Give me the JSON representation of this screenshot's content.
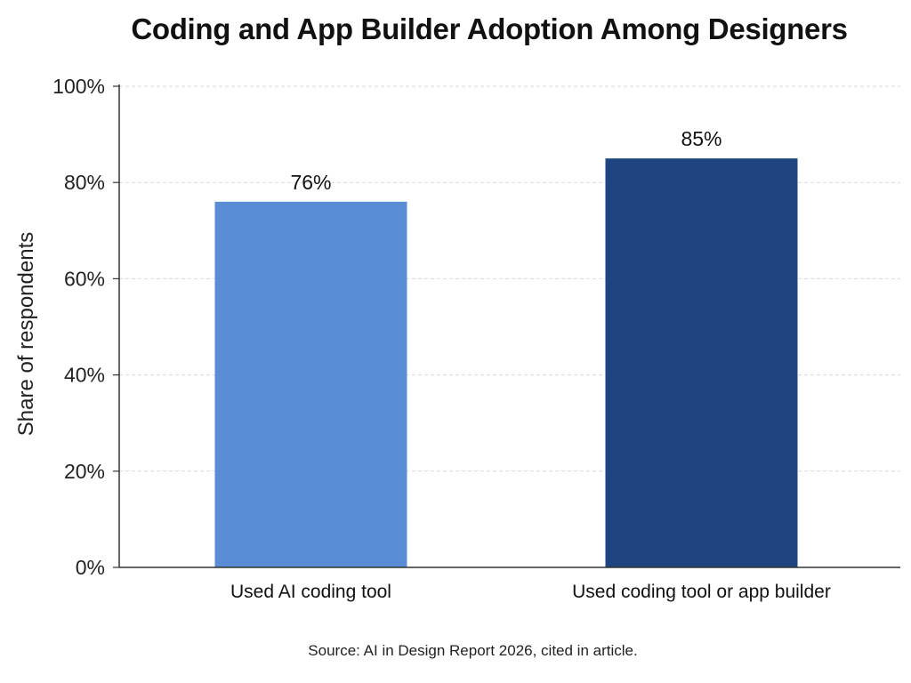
{
  "chart_data": {
    "type": "bar",
    "title": "Coding and App Builder Adoption Among Designers",
    "ylabel": "Share of respondents",
    "xlabel": "",
    "categories": [
      "Used AI coding tool",
      "Used coding tool or app builder"
    ],
    "values": [
      76,
      85
    ],
    "data_labels": [
      "76%",
      "85%"
    ],
    "yticks": [
      0,
      20,
      40,
      60,
      80,
      100
    ],
    "ytick_labels": [
      "0%",
      "20%",
      "40%",
      "60%",
      "80%",
      "100%"
    ],
    "ylim": [
      0,
      100
    ],
    "grid": true,
    "colors": [
      "#5B8DD6",
      "#1F4580"
    ],
    "source": "Source: AI in Design Report 2026, cited in article."
  }
}
